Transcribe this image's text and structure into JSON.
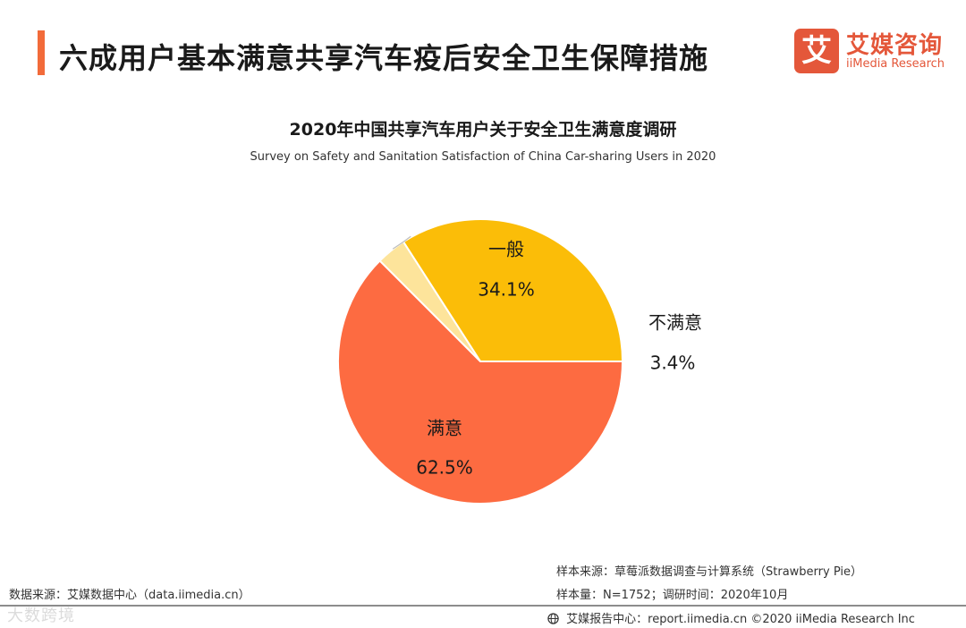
{
  "header": {
    "title": "六成用户基本满意共享汽车疫后安全卫生保障措施",
    "logo_mark": "艾",
    "logo_cn": "艾媒咨询",
    "logo_en": "iiMedia Research"
  },
  "chart_data": {
    "type": "pie",
    "title": "2020年中国共享汽车用户关于安全卫生满意度调研",
    "subtitle": "Survey on Safety and Sanitation Satisfaction of China Car-sharing  Users in 2020",
    "slices": [
      {
        "label": "一般",
        "value": 34.1,
        "value_label": "34.1%",
        "color": "#fbbd08"
      },
      {
        "label": "不满意",
        "value": 3.4,
        "value_label": "3.4%",
        "color": "#fde49b"
      },
      {
        "label": "满意",
        "value": 62.5,
        "value_label": "62.5%",
        "color": "#fd6b41"
      }
    ],
    "start_angle_deg": 0,
    "direction": "counterclockwise"
  },
  "sources": {
    "sample_source": "样本来源：草莓派数据调查与计算系统（Strawberry Pie）",
    "sample_size": "样本量：N=1752；调研时间：2020年10月",
    "data_source": "数据来源：艾媒数据中心（data.iimedia.cn）"
  },
  "footer": {
    "text": "艾媒报告中心：report.iimedia.cn ©2020  iiMedia Research  Inc",
    "globe_icon": "globe-icon"
  },
  "watermark": "大数跨境"
}
